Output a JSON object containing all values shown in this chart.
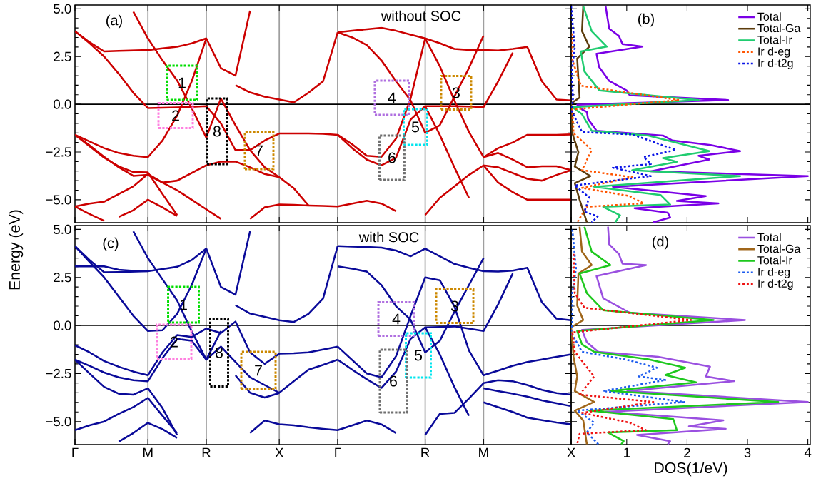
{
  "chart_data": [
    {
      "type": "line",
      "ylabel": "Energy (eV)",
      "color": "#cc0000",
      "line_style": "solid",
      "grid": "x",
      "tick_labels": "y",
      "categories": [
        null,
        null,
        null,
        null,
        null,
        null,
        null,
        null,
        null,
        null,
        null,
        null,
        null,
        null,
        null,
        null,
        null,
        null,
        null,
        null,
        null,
        null,
        null,
        null,
        null,
        null,
        null,
        null,
        null,
        null,
        null,
        null,
        null,
        null,
        null
      ],
      "ylim": [
        -6.2,
        5.2
      ],
      "yticks": [
        {
          "value": -5,
          "label": "−5.0"
        },
        {
          "value": -2.5,
          "label": "−2.5"
        },
        {
          "value": 0,
          "label": "0.0"
        },
        {
          "value": 2.5,
          "label": "2.5"
        },
        {
          "value": 5,
          "label": "5.0"
        }
      ],
      "ref_lines": [
        {
          "axis": "y",
          "value": 0
        }
      ],
      "annotations": [
        "(a)",
        "without SOC",
        "1",
        "2",
        "3",
        "4",
        "5",
        "6",
        "7",
        "8"
      ],
      "series": [
        {
          "values": [
            3.83,
            3.25,
            2.77,
            2.8,
            2.82,
            2.84,
            2.93,
            3.01,
            3.19,
            3.45,
            1.9,
            1.5,
            4.9,
            null,
            null,
            null,
            null,
            null,
            null,
            null,
            null,
            null,
            null,
            null,
            null,
            null,
            null,
            null,
            null,
            null,
            null,
            null,
            null,
            null,
            null
          ]
        },
        {
          "values": [
            null,
            null,
            null,
            null,
            4.85,
            3.45,
            2.3,
            1.25,
            -0.2,
            -1.75,
            0.3,
            -1.1,
            -2.4,
            -3.3,
            -3.82,
            -4.4,
            -5.3,
            null,
            null,
            null,
            null,
            null,
            null,
            null,
            null,
            null,
            null,
            null,
            null,
            null,
            null,
            null,
            null,
            null,
            null
          ]
        },
        {
          "values": [
            3.83,
            3.2,
            2.5,
            1.6,
            0.6,
            -0.2,
            -0.18,
            -0.16,
            -0.14,
            -0.1,
            -1.0,
            -2.4,
            -2.4,
            -1.9,
            -1.53,
            -1.53,
            -1.53,
            -1.55,
            -1.6,
            null,
            null,
            null,
            null,
            null,
            null,
            null,
            null,
            null,
            null,
            null,
            null,
            null,
            null,
            null,
            null
          ]
        },
        {
          "values": [
            -1.6,
            -1.95,
            -2.3,
            -2.55,
            -2.7,
            -2.77,
            -1.9,
            -0.6,
            1.2,
            3.45,
            null,
            null,
            null,
            null,
            null,
            null,
            null,
            null,
            null,
            null,
            null,
            null,
            null,
            null,
            null,
            null,
            null,
            null,
            null,
            null,
            null,
            null,
            null,
            null,
            null
          ]
        },
        {
          "values": [
            -1.6,
            -2.2,
            -2.8,
            -3.25,
            -3.55,
            -3.57,
            -4.7,
            -5.8,
            null,
            null,
            null,
            null,
            null,
            null,
            null,
            null,
            null,
            null,
            null,
            null,
            null,
            null,
            null,
            null,
            null,
            null,
            null,
            null,
            null,
            null,
            null,
            null,
            null,
            null,
            null
          ]
        },
        {
          "values": [
            -1.6,
            -2.15,
            -2.75,
            -3.3,
            -3.75,
            -3.7,
            -4.1,
            -4.5,
            -5.0,
            -5.5,
            -6.0,
            null,
            null,
            null,
            null,
            null,
            null,
            null,
            null,
            null,
            null,
            null,
            null,
            null,
            null,
            null,
            null,
            null,
            null,
            null,
            null,
            null,
            null,
            null,
            null
          ]
        },
        {
          "values": [
            -5.35,
            -5.2,
            -5.1,
            -4.7,
            -4.3,
            -3.65,
            -4.1,
            -4.0,
            -3.6,
            -3.2,
            -3.0,
            -3.0,
            -3.3,
            -3.65,
            -3.82,
            null,
            null,
            null,
            null,
            null,
            null,
            null,
            null,
            null,
            null,
            null,
            null,
            null,
            null,
            null,
            null,
            null,
            null,
            null,
            null
          ]
        },
        {
          "values": [
            -5.35,
            -5.75,
            -6.1,
            null,
            null,
            null,
            null,
            null,
            null,
            null,
            null,
            null,
            null,
            null,
            null,
            null,
            null,
            null,
            null,
            null,
            null,
            null,
            null,
            null,
            null,
            null,
            null,
            null,
            null,
            null,
            null,
            null,
            null,
            null,
            null
          ]
        },
        {
          "values": [
            null,
            null,
            null,
            -5.9,
            -5.55,
            -5.0,
            -5.4,
            -5.85,
            null,
            null,
            null,
            null,
            null,
            null,
            null,
            null,
            null,
            null,
            null,
            null,
            null,
            null,
            null,
            null,
            null,
            null,
            null,
            null,
            null,
            null,
            null,
            null,
            null,
            null,
            null
          ]
        },
        {
          "values": [
            null,
            null,
            null,
            null,
            null,
            null,
            null,
            null,
            null,
            null,
            null,
            null,
            -6.0,
            -5.4,
            -5.25,
            -5.27,
            -5.3,
            -5.32,
            -5.35,
            -5.2,
            -5.05,
            -5.2,
            -5.6,
            null,
            null,
            null,
            null,
            null,
            null,
            null,
            null,
            null,
            null,
            null,
            null
          ]
        },
        {
          "values": [
            null,
            null,
            null,
            null,
            null,
            null,
            null,
            null,
            null,
            null,
            null,
            1.0,
            0.62,
            0.4,
            0.25,
            0.1,
            0.6,
            1.2,
            3.77,
            null,
            null,
            null,
            null,
            null,
            null,
            null,
            null,
            null,
            null,
            null,
            null,
            null,
            null,
            null,
            null
          ]
        },
        {
          "values": [
            null,
            null,
            null,
            null,
            null,
            null,
            null,
            null,
            null,
            null,
            null,
            null,
            null,
            null,
            null,
            null,
            null,
            null,
            3.77,
            3.85,
            3.93,
            4.0,
            3.85,
            3.65,
            3.45,
            3.2,
            2.9,
            2.85,
            2.84,
            2.82,
            2.9,
            3.0,
            1.2,
            0.25,
            0.2
          ]
        },
        {
          "values": [
            null,
            null,
            null,
            null,
            null,
            null,
            null,
            null,
            null,
            null,
            null,
            null,
            null,
            null,
            null,
            null,
            null,
            null,
            3.77,
            3.5,
            3.1,
            2.3,
            1.2,
            0.2,
            -1.5,
            -1.1,
            0.4,
            1.9,
            3.6,
            null,
            null,
            null,
            null,
            null,
            null
          ]
        },
        {
          "values": [
            null,
            null,
            null,
            null,
            null,
            null,
            null,
            null,
            null,
            null,
            null,
            null,
            null,
            null,
            null,
            null,
            null,
            null,
            -1.6,
            -2.1,
            -2.7,
            -2.75,
            -1.8,
            0.3,
            3.45,
            2.0,
            0.2,
            -1.45,
            -2.77,
            -2.3,
            -2.0,
            -1.6,
            -1.6,
            -1.6,
            -1.58
          ]
        },
        {
          "values": [
            null,
            null,
            null,
            null,
            null,
            null,
            null,
            null,
            null,
            null,
            null,
            null,
            null,
            null,
            null,
            null,
            null,
            null,
            -1.6,
            -2.3,
            -2.9,
            -3.2,
            -2.8,
            -0.8,
            -0.1,
            -0.1,
            -0.1,
            -0.12,
            -0.15,
            1.2,
            2.7,
            null,
            null,
            null,
            null
          ]
        },
        {
          "values": [
            null,
            null,
            null,
            null,
            null,
            null,
            null,
            null,
            null,
            null,
            null,
            null,
            null,
            null,
            null,
            null,
            null,
            null,
            null,
            null,
            null,
            null,
            null,
            null,
            -5.8,
            -4.9,
            -4.3,
            -3.7,
            -3.2,
            -3.3,
            -3.6,
            -3.9,
            -4.0,
            -3.7,
            -3.45
          ]
        },
        {
          "values": [
            null,
            null,
            null,
            null,
            null,
            null,
            null,
            null,
            null,
            null,
            null,
            null,
            null,
            null,
            null,
            null,
            null,
            null,
            null,
            null,
            null,
            null,
            null,
            null,
            null,
            null,
            null,
            null,
            -2.77,
            -2.55,
            -2.9,
            -3.3,
            -3.25,
            -3.25,
            -3.45
          ]
        },
        {
          "values": [
            null,
            null,
            null,
            null,
            null,
            null,
            null,
            null,
            null,
            null,
            null,
            null,
            null,
            null,
            null,
            null,
            null,
            null,
            null,
            null,
            null,
            null,
            null,
            null,
            null,
            null,
            null,
            null,
            -3.2,
            -4.1,
            -4.6,
            -5.0,
            -5.0,
            -5.0,
            -5.0
          ]
        },
        {
          "values": [
            null,
            null,
            null,
            null,
            null,
            null,
            null,
            null,
            null,
            null,
            null,
            null,
            null,
            null,
            null,
            null,
            null,
            null,
            null,
            null,
            null,
            null,
            null,
            null,
            -0.1,
            -1.6,
            -3.3,
            -4.9,
            null,
            null,
            null,
            null,
            null,
            null,
            null
          ]
        }
      ]
    },
    {
      "type": "line",
      "legend": "top right",
      "tick_labels": false,
      "line_style": "solid",
      "xlim": [
        0.08,
        4.04
      ],
      "ylim": [
        -6.2,
        5.2
      ],
      "xticks": [
        1,
        2,
        3,
        4
      ],
      "yticks": [
        -5,
        -2.5,
        0,
        2.5,
        5
      ],
      "ref_lines": [
        {
          "axis": "y",
          "value": 0
        }
      ],
      "annotations": [
        "(b)"
      ],
      "series": [
        {
          "name": "Total",
          "color": "#7a00e6",
          "x": [
            0.65,
            0.71,
            0.87,
            0.93,
            1.26,
            0.5,
            0.54,
            0.71,
            1.0,
            1.05,
            2.68,
            0.18,
            0.26,
            0.34,
            0.36,
            0.5,
            1.6,
            1.75,
            2.39,
            2.88,
            2.19,
            2.37,
            1.4,
            4.0,
            0.77,
            2.31,
            1.83,
            2.52,
            1.13,
            1.68,
            1.72,
            1.44
          ],
          "values": [
            5.14,
            3.96,
            3.58,
            3.15,
            3.02,
            2.65,
            1.97,
            1.22,
            0.72,
            0.47,
            0.22,
            -0.02,
            -0.27,
            -0.4,
            -0.77,
            -1.39,
            -1.64,
            -1.89,
            -2.14,
            -2.45,
            -2.7,
            -2.89,
            -3.51,
            -3.76,
            -4.32,
            -4.81,
            -5.06,
            -5.19,
            -5.44,
            -5.68,
            -5.93,
            -6.18
          ]
        },
        {
          "name": "Total-Ga",
          "color": "#5c3c0c",
          "x": [
            0.28,
            0.26,
            0.38,
            0.18,
            0.2,
            0.22,
            0.08,
            0.1,
            0.2,
            0.14,
            0.4,
            0.14,
            0.22,
            0.34
          ],
          "values": [
            5.14,
            3.83,
            3.02,
            2.4,
            1.34,
            0.35,
            0.04,
            -1.52,
            -2.51,
            -3.26,
            -3.76,
            -4.13,
            -5.0,
            -6.18
          ]
        },
        {
          "name": "Total-Ir",
          "color": "#20cc70",
          "x": [
            0.28,
            0.42,
            0.67,
            0.24,
            0.3,
            0.55,
            2.19,
            0.1,
            0.26,
            0.42,
            1.36,
            2.37,
            1.6,
            1.83,
            1.09,
            2.88,
            0.46,
            1.56,
            1.72,
            0.61,
            0.89,
            0.81
          ],
          "values": [
            5.14,
            3.83,
            3.02,
            2.77,
            1.72,
            0.72,
            0.22,
            -0.15,
            -0.52,
            -1.39,
            -1.64,
            -2.45,
            -2.82,
            -3.01,
            -3.45,
            -3.76,
            -4.32,
            -4.75,
            -5.25,
            -5.37,
            -5.81,
            -6.18
          ]
        },
        {
          "name": "Ir d-eg",
          "color": "#ff5500",
          "line_style": "dotted",
          "x": [
            0.1,
            0.1,
            0.24,
            1.87,
            0.1,
            0.12,
            0.42,
            0.26,
            1.09,
            0.26,
            1.05,
            1.28,
            0.34,
            0.18
          ],
          "values": [
            3.71,
            2.34,
            0.97,
            0.22,
            -0.27,
            -1.52,
            -2.39,
            -3.45,
            -3.82,
            -4.38,
            -4.81,
            -5.19,
            -5.37,
            -6.18
          ]
        },
        {
          "name": "Ir d-t2g",
          "color": "#0a14e6",
          "line_style": "dotted",
          "x": [
            0.08,
            0.14,
            0.09,
            0.11,
            0.09,
            0.26,
            1.09,
            1.81,
            1.28,
            1.4,
            0.77,
            1.4,
            0.14,
            0.38,
            0.3,
            0.52,
            0.42
          ],
          "values": [
            5.14,
            2.96,
            1.72,
            0.3,
            -0.35,
            -1.46,
            -1.58,
            -2.39,
            -2.76,
            -3.13,
            -3.32,
            -3.76,
            -4.25,
            -4.88,
            -5.62,
            -5.87,
            -6.18
          ]
        }
      ]
    },
    {
      "type": "line",
      "color": "#0a0a99",
      "line_style": "solid",
      "grid": "x",
      "categories": [
        "Γ",
        null,
        null,
        null,
        null,
        "M",
        null,
        null,
        null,
        "R",
        null,
        null,
        null,
        null,
        "X",
        null,
        null,
        null,
        "Γ",
        null,
        null,
        null,
        null,
        null,
        "R",
        null,
        null,
        null,
        "M",
        null,
        null,
        null,
        null,
        null,
        "X"
      ],
      "ylim": [
        -6.2,
        5.2
      ],
      "yticks": [
        {
          "value": -5,
          "label": "−5.0"
        },
        {
          "value": -2.5,
          "label": "−2.5"
        },
        {
          "value": 0,
          "label": "0.0"
        },
        {
          "value": 2.5,
          "label": "2.5"
        },
        {
          "value": 5,
          "label": "5.0"
        }
      ],
      "ref_lines": [
        {
          "axis": "y",
          "value": 0
        }
      ],
      "annotations": [
        "(c)",
        "with SOC",
        "1",
        "2",
        "3",
        "4",
        "5",
        "6",
        "7",
        "8"
      ],
      "series": [
        {
          "values": [
            4.13,
            3.4,
            2.77,
            2.78,
            2.8,
            2.82,
            2.93,
            3.05,
            3.4,
            4.0,
            2.0,
            1.6,
            4.9,
            null,
            null,
            null,
            null,
            null,
            null,
            null,
            null,
            null,
            null,
            null,
            null,
            null,
            null,
            null,
            null,
            null,
            null,
            null,
            null,
            null,
            null
          ]
        },
        {
          "values": [
            3.07,
            3.07,
            3.07,
            2.9,
            2.84,
            2.82,
            null,
            null,
            null,
            null,
            null,
            null,
            null,
            null,
            null,
            null,
            null,
            null,
            null,
            null,
            null,
            null,
            null,
            null,
            null,
            null,
            null,
            null,
            null,
            null,
            null,
            null,
            null,
            null,
            null
          ]
        },
        {
          "values": [
            4.13,
            3.3,
            2.5,
            1.5,
            0.5,
            -0.29,
            -0.25,
            0.6,
            2.1,
            4.0,
            null,
            null,
            null,
            null,
            null,
            null,
            null,
            null,
            null,
            null,
            null,
            null,
            null,
            null,
            null,
            null,
            null,
            null,
            null,
            null,
            null,
            null,
            null,
            null,
            null
          ]
        },
        {
          "values": [
            null,
            null,
            null,
            null,
            4.9,
            3.5,
            2.4,
            1.3,
            -0.3,
            -1.78,
            -0.3,
            null,
            null,
            null,
            null,
            null,
            null,
            null,
            null,
            null,
            null,
            null,
            null,
            null,
            null,
            null,
            null,
            null,
            null,
            null,
            null,
            null,
            null,
            null,
            null
          ]
        },
        {
          "values": [
            -1.03,
            -1.4,
            -1.85,
            -2.15,
            -2.4,
            -2.59,
            -1.4,
            -0.5,
            -0.6,
            -0.16,
            -0.4,
            0.2,
            -1.4,
            -2.0,
            -1.47,
            -1.45,
            -1.4,
            -1.25,
            -1.1,
            null,
            null,
            null,
            null,
            null,
            null,
            null,
            null,
            null,
            null,
            null,
            null,
            null,
            null,
            null,
            null
          ]
        },
        {
          "values": [
            -1.78,
            -2.1,
            -2.45,
            -2.7,
            -2.85,
            -2.9,
            -1.7,
            -0.7,
            -0.8,
            -1.78,
            -1.1,
            -1.9,
            -2.7,
            -3.1,
            -3.5,
            -2.9,
            -2.3,
            -2.05,
            -1.78,
            null,
            null,
            null,
            null,
            null,
            null,
            null,
            null,
            null,
            null,
            null,
            null,
            null,
            null,
            null,
            null
          ]
        },
        {
          "values": [
            -1.78,
            -2.5,
            -3.2,
            -3.55,
            -3.6,
            -3.27,
            -4.3,
            -5.7,
            null,
            null,
            null,
            null,
            null,
            null,
            null,
            null,
            null,
            null,
            null,
            null,
            null,
            null,
            null,
            null,
            null,
            null,
            null,
            null,
            null,
            null,
            null,
            null,
            null,
            null,
            null
          ]
        },
        {
          "values": [
            -5.45,
            -5.2,
            -5.0,
            -4.6,
            -4.25,
            -3.77,
            -4.7,
            -5.6,
            null,
            null,
            null,
            null,
            null,
            null,
            null,
            null,
            null,
            null,
            null,
            null,
            null,
            null,
            null,
            null,
            null,
            null,
            null,
            null,
            null,
            null,
            null,
            null,
            null,
            null,
            null
          ]
        },
        {
          "values": [
            null,
            null,
            null,
            -6.05,
            -5.6,
            -5.07,
            -5.4,
            -5.85,
            null,
            null,
            null,
            null,
            null,
            null,
            null,
            null,
            null,
            null,
            null,
            null,
            null,
            null,
            null,
            null,
            null,
            null,
            null,
            null,
            null,
            null,
            null,
            null,
            null,
            null,
            null
          ]
        },
        {
          "values": [
            null,
            null,
            null,
            null,
            null,
            null,
            null,
            null,
            null,
            null,
            null,
            1.05,
            0.62,
            0.45,
            0.27,
            0.18,
            0.6,
            1.4,
            4.13,
            null,
            null,
            null,
            null,
            null,
            null,
            null,
            null,
            null,
            null,
            null,
            null,
            null,
            null,
            null,
            null
          ]
        },
        {
          "values": [
            null,
            null,
            null,
            null,
            null,
            null,
            null,
            null,
            null,
            null,
            null,
            null,
            -5.6,
            -4.95,
            -5.14,
            -5.2,
            -5.3,
            -5.38,
            -5.45,
            -5.2,
            -4.95,
            -5.15,
            -5.6,
            null,
            null,
            null,
            null,
            null,
            null,
            null,
            null,
            null,
            null,
            null,
            null
          ]
        },
        {
          "values": [
            null,
            null,
            null,
            null,
            null,
            null,
            null,
            null,
            null,
            null,
            null,
            -2.6,
            -3.5,
            -3.75,
            -3.52,
            null,
            null,
            null,
            null,
            null,
            null,
            null,
            null,
            null,
            null,
            null,
            null,
            null,
            null,
            null,
            null,
            null,
            null,
            null,
            null
          ]
        },
        {
          "values": [
            null,
            null,
            null,
            null,
            null,
            null,
            null,
            null,
            null,
            null,
            null,
            null,
            null,
            null,
            null,
            null,
            null,
            null,
            4.13,
            4.1,
            4.08,
            4.05,
            3.9,
            3.6,
            4.0,
            3.6,
            3.2,
            3.0,
            2.82,
            2.8,
            2.85,
            3.0,
            1.2,
            0.35,
            0.27
          ]
        },
        {
          "values": [
            null,
            null,
            null,
            null,
            null,
            null,
            null,
            null,
            null,
            null,
            null,
            null,
            null,
            null,
            null,
            null,
            null,
            null,
            3.07,
            2.95,
            2.8,
            2.1,
            1.0,
            0.3,
            -1.4,
            -0.8,
            0.7,
            2.1,
            3.5,
            null,
            null,
            null,
            null,
            null,
            null
          ]
        },
        {
          "values": [
            null,
            null,
            null,
            null,
            null,
            null,
            null,
            null,
            null,
            null,
            null,
            null,
            null,
            null,
            null,
            null,
            null,
            null,
            -1.1,
            -1.8,
            -2.5,
            -2.7,
            -1.6,
            0.5,
            2.5,
            2.35,
            1.0,
            -1.3,
            -2.59,
            -2.35,
            -2.1,
            -1.9,
            -1.77,
            -1.63,
            -1.5
          ]
        },
        {
          "values": [
            null,
            null,
            null,
            null,
            null,
            null,
            null,
            null,
            null,
            null,
            null,
            null,
            null,
            null,
            null,
            null,
            null,
            null,
            -1.78,
            -2.3,
            -2.8,
            -3.25,
            -2.4,
            -0.7,
            -0.1,
            -0.08,
            -0.05,
            -0.17,
            -0.29,
            1.1,
            2.7,
            null,
            null,
            null,
            null
          ]
        },
        {
          "values": [
            null,
            null,
            null,
            null,
            null,
            null,
            null,
            null,
            null,
            null,
            null,
            null,
            null,
            null,
            null,
            null,
            null,
            null,
            null,
            null,
            null,
            null,
            null,
            null,
            -5.7,
            -4.6,
            -4.55,
            -3.8,
            -3.0,
            -2.85,
            -2.9,
            -3.1,
            -3.35,
            -3.52,
            -3.6
          ]
        },
        {
          "values": [
            null,
            null,
            null,
            null,
            null,
            null,
            null,
            null,
            null,
            null,
            null,
            null,
            null,
            null,
            null,
            null,
            null,
            null,
            null,
            null,
            null,
            null,
            null,
            null,
            null,
            null,
            null,
            null,
            -3.27,
            -3.42,
            -3.55,
            -3.7,
            -3.9,
            -4.05,
            -4.2
          ]
        },
        {
          "values": [
            null,
            null,
            null,
            null,
            null,
            null,
            null,
            null,
            null,
            null,
            null,
            null,
            null,
            null,
            null,
            null,
            null,
            null,
            null,
            null,
            null,
            null,
            null,
            null,
            null,
            null,
            null,
            null,
            -4.0,
            -4.25,
            -4.5,
            -4.8,
            -4.93,
            -5.05,
            -5.14
          ]
        },
        {
          "values": [
            null,
            null,
            null,
            null,
            null,
            null,
            null,
            null,
            null,
            null,
            null,
            null,
            null,
            null,
            null,
            null,
            null,
            null,
            null,
            null,
            null,
            null,
            null,
            null,
            -0.1,
            -1.5,
            -3.2,
            -4.7,
            null,
            null,
            null,
            null,
            null,
            null,
            null
          ]
        }
      ]
    },
    {
      "type": "line",
      "legend": "top right",
      "tick_labels": "x",
      "xlabel": "DOS(1/eV)",
      "line_style": "solid",
      "xlim": [
        0.08,
        4.04
      ],
      "ylim": [
        -6.2,
        5.2
      ],
      "xticks": [
        1,
        2,
        3,
        4
      ],
      "yticks": [
        -5,
        -2.5,
        0,
        2.5,
        5
      ],
      "ref_lines": [
        {
          "axis": "y",
          "value": 0
        }
      ],
      "annotations": [
        "(d)"
      ],
      "series": [
        {
          "name": "Total",
          "color": "#9a50e0",
          "x": [
            0.69,
            0.71,
            0.87,
            0.93,
            1.32,
            0.5,
            0.61,
            1.05,
            2.96,
            0.26,
            0.34,
            0.53,
            1.52,
            2.38,
            2.31,
            2.78,
            1.01,
            4.0,
            0.65,
            2.6,
            2.03,
            2.64,
            1.17,
            1.72,
            1.68
          ],
          "values": [
            5.14,
            4.22,
            3.72,
            3.21,
            3.14,
            2.57,
            1.42,
            0.66,
            0.28,
            -0.23,
            -0.87,
            -1.37,
            -1.63,
            -2.14,
            -2.65,
            -2.9,
            -3.41,
            -3.98,
            -4.49,
            -4.94,
            -5.25,
            -5.38,
            -5.7,
            -6.02,
            -6.18
          ]
        },
        {
          "name": "Total-Ga",
          "color": "#a0661a",
          "x": [
            0.22,
            0.26,
            0.42,
            0.2,
            0.18,
            0.28,
            0.08,
            0.12,
            0.18,
            0.14,
            0.46,
            0.14,
            0.28,
            0.34
          ],
          "values": [
            5.14,
            3.84,
            3.14,
            2.7,
            1.04,
            0.28,
            -0.1,
            -1.63,
            -2.65,
            -3.41,
            -3.98,
            -4.43,
            -4.94,
            -6.18
          ]
        },
        {
          "name": "Total-Ir",
          "color": "#1ec81e",
          "x": [
            0.3,
            0.42,
            0.73,
            0.22,
            0.34,
            0.61,
            2.44,
            0.18,
            0.26,
            0.46,
            1.36,
            1.97,
            1.64,
            2.15,
            0.73,
            3.51,
            0.38,
            1.77,
            1.83,
            0.69,
            0.95,
            0.91
          ],
          "values": [
            5.14,
            3.84,
            3.14,
            2.7,
            1.68,
            0.79,
            0.28,
            -0.29,
            -0.99,
            -1.37,
            -1.76,
            -2.2,
            -2.58,
            -2.96,
            -3.41,
            -3.98,
            -4.43,
            -4.87,
            -5.45,
            -5.57,
            -6.02,
            -6.18
          ]
        },
        {
          "name": "Ir d-eg",
          "color": "#1a5aee",
          "line_style": "dotted",
          "x": [
            0.1,
            0.16,
            0.1,
            0.1,
            0.08,
            0.26,
            0.97,
            1.5,
            1.2,
            1.64,
            0.61,
            1.95,
            0.18,
            0.46,
            0.34,
            0.53
          ],
          "values": [
            4.99,
            2.95,
            1.68,
            0.15,
            -0.36,
            -1.37,
            -1.76,
            -2.2,
            -2.65,
            -2.84,
            -3.41,
            -3.98,
            -4.43,
            -5.06,
            -5.57,
            -6.18
          ]
        },
        {
          "name": "Ir d-t2g",
          "color": "#ee1111",
          "line_style": "dotted",
          "x": [
            0.12,
            0.14,
            0.3,
            2.07,
            0.1,
            0.14,
            0.46,
            0.22,
            1.44,
            0.26,
            1.05,
            1.32,
            0.22,
            0.18
          ],
          "values": [
            3.72,
            1.68,
            0.92,
            0.28,
            -0.36,
            -1.37,
            -2.65,
            -3.6,
            -3.98,
            -4.55,
            -5.06,
            -5.45,
            -5.64,
            -6.18
          ]
        }
      ]
    }
  ]
}
